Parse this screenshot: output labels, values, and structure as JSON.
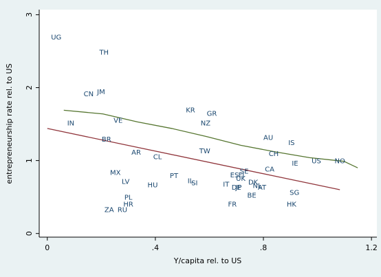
{
  "chart_data": {
    "type": "scatter",
    "xlabel": "Y/capita rel. to US",
    "ylabel": "entrepreneurship rate rel. to US",
    "labels": [
      "UG",
      "TH",
      "CN",
      "JM",
      "IN",
      "VE",
      "BR",
      "AR",
      "CL",
      "MX",
      "LV",
      "HU",
      "PT",
      "PL",
      "HR",
      "ZA",
      "RU",
      "KR",
      "GR",
      "NZ",
      "TW",
      "IL",
      "SI",
      "ES",
      "FI",
      "SE",
      "UK",
      "IT",
      "DE",
      "JP",
      "DK",
      "NL",
      "AT",
      "BE",
      "FR",
      "CA",
      "AU",
      "CH",
      "IS",
      "IE",
      "US",
      "NO",
      "SG",
      "HK"
    ],
    "x": [
      0.033,
      0.21,
      0.153,
      0.199,
      0.087,
      0.262,
      0.219,
      0.329,
      0.408,
      0.252,
      0.29,
      0.39,
      0.469,
      0.3,
      0.3,
      0.229,
      0.278,
      0.53,
      0.609,
      0.586,
      0.583,
      0.53,
      0.545,
      0.693,
      0.718,
      0.729,
      0.716,
      0.662,
      0.7,
      0.708,
      0.762,
      0.777,
      0.795,
      0.757,
      0.685,
      0.823,
      0.818,
      0.838,
      0.904,
      0.917,
      0.996,
      1.083,
      0.915,
      0.904
    ],
    "y": [
      2.69,
      2.48,
      1.91,
      1.94,
      1.51,
      1.55,
      1.29,
      1.11,
      1.05,
      0.83,
      0.71,
      0.66,
      0.79,
      0.49,
      0.4,
      0.32,
      0.32,
      1.69,
      1.64,
      1.51,
      1.13,
      0.72,
      0.69,
      0.8,
      0.8,
      0.85,
      0.75,
      0.67,
      0.63,
      0.63,
      0.7,
      0.65,
      0.63,
      0.52,
      0.4,
      0.88,
      1.31,
      1.09,
      1.24,
      0.96,
      0.99,
      0.99,
      0.56,
      0.4
    ],
    "label_color": "#1a476f",
    "lines": [
      {
        "color": "#90353b",
        "x": [
          0.0,
          1.083
        ],
        "y": [
          1.44,
          0.6
        ]
      },
      {
        "color": "#55752f",
        "x": [
          0.061,
          0.206,
          0.334,
          0.461,
          0.589,
          0.716,
          0.843,
          0.971,
          1.098,
          1.149
        ],
        "y": [
          1.69,
          1.64,
          1.53,
          1.44,
          1.33,
          1.21,
          1.12,
          1.04,
          0.99,
          0.9
        ]
      }
    ],
    "xlim": [
      -0.03,
      1.22
    ],
    "ylim": [
      -0.05,
      3.07
    ],
    "xticks": [
      0,
      {
        "value": 0.4,
        "label": ".4"
      },
      {
        "value": 0.8,
        "label": ".8"
      },
      1.2
    ],
    "yticks": [
      0,
      1,
      2,
      3
    ],
    "grid": false
  }
}
